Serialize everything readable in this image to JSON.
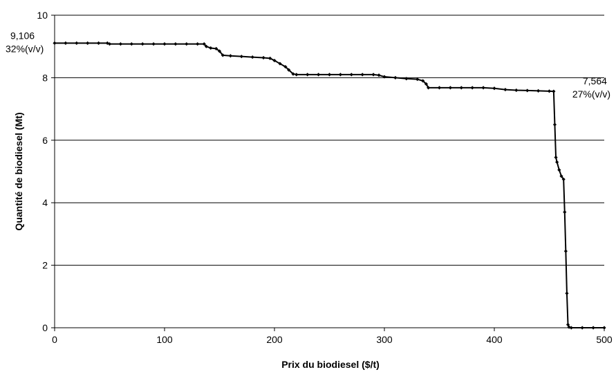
{
  "chart_data": {
    "type": "line",
    "title": "",
    "xlabel": "Prix du biodiesel ($/t)",
    "ylabel": "Quantité de biodiesel (Mt)",
    "xlim": [
      0,
      500
    ],
    "ylim": [
      0,
      10
    ],
    "x_ticks": [
      "0",
      "100",
      "200",
      "300",
      "400",
      "500"
    ],
    "y_ticks": [
      "0",
      "2",
      "4",
      "6",
      "8",
      "10"
    ],
    "grid": "horizontal",
    "legend": "none",
    "series": [
      {
        "color": "#000000",
        "marker": "diamond",
        "points": [
          [
            0,
            9.106
          ],
          [
            10,
            9.106
          ],
          [
            20,
            9.106
          ],
          [
            30,
            9.106
          ],
          [
            40,
            9.106
          ],
          [
            48,
            9.106
          ],
          [
            50,
            9.08
          ],
          [
            60,
            9.08
          ],
          [
            70,
            9.08
          ],
          [
            80,
            9.08
          ],
          [
            90,
            9.08
          ],
          [
            100,
            9.08
          ],
          [
            110,
            9.08
          ],
          [
            120,
            9.08
          ],
          [
            130,
            9.08
          ],
          [
            136,
            9.08
          ],
          [
            138,
            9.0
          ],
          [
            142,
            8.95
          ],
          [
            147,
            8.93
          ],
          [
            150,
            8.85
          ],
          [
            153,
            8.72
          ],
          [
            160,
            8.7
          ],
          [
            170,
            8.68
          ],
          [
            180,
            8.66
          ],
          [
            190,
            8.64
          ],
          [
            196,
            8.62
          ],
          [
            200,
            8.55
          ],
          [
            205,
            8.45
          ],
          [
            210,
            8.35
          ],
          [
            213,
            8.25
          ],
          [
            217,
            8.12
          ],
          [
            220,
            8.1
          ],
          [
            230,
            8.1
          ],
          [
            240,
            8.1
          ],
          [
            250,
            8.1
          ],
          [
            260,
            8.1
          ],
          [
            270,
            8.1
          ],
          [
            280,
            8.1
          ],
          [
            290,
            8.1
          ],
          [
            295,
            8.08
          ],
          [
            300,
            8.03
          ],
          [
            310,
            8.0
          ],
          [
            320,
            7.97
          ],
          [
            330,
            7.95
          ],
          [
            335,
            7.9
          ],
          [
            338,
            7.8
          ],
          [
            340,
            7.68
          ],
          [
            350,
            7.68
          ],
          [
            360,
            7.68
          ],
          [
            370,
            7.68
          ],
          [
            380,
            7.68
          ],
          [
            390,
            7.68
          ],
          [
            400,
            7.66
          ],
          [
            410,
            7.62
          ],
          [
            420,
            7.6
          ],
          [
            430,
            7.59
          ],
          [
            440,
            7.58
          ],
          [
            450,
            7.57
          ],
          [
            454,
            7.564
          ],
          [
            455,
            6.5
          ],
          [
            456,
            5.45
          ],
          [
            457,
            5.3
          ],
          [
            459,
            5.05
          ],
          [
            461,
            4.85
          ],
          [
            463,
            4.75
          ],
          [
            464,
            3.7
          ],
          [
            465,
            2.45
          ],
          [
            466,
            1.1
          ],
          [
            467,
            0.1
          ],
          [
            468,
            0.02
          ],
          [
            470,
            0.0
          ],
          [
            480,
            0.0
          ],
          [
            490,
            0.0
          ],
          [
            500,
            0.0
          ]
        ]
      }
    ],
    "annotations": [
      {
        "lines": [
          "9,106",
          "32%(v/v)"
        ],
        "x": 0,
        "y": 9.106,
        "anchor": "left-of-start"
      },
      {
        "lines": [
          "7,564",
          "27%(v/v)"
        ],
        "x": 454,
        "y": 7.564,
        "anchor": "right-of-point"
      }
    ]
  }
}
